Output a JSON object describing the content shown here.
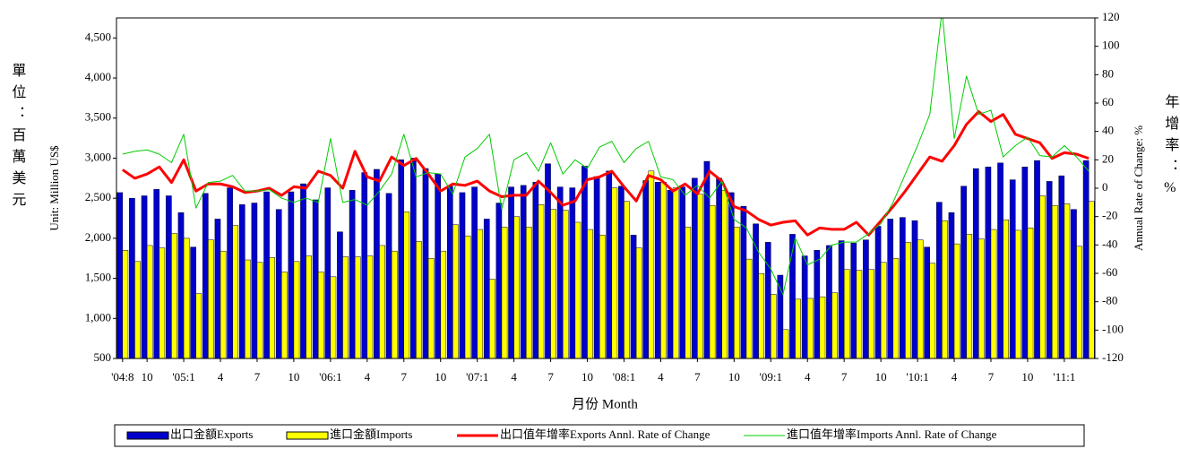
{
  "chart_data": {
    "type": "bar",
    "y_label_cn": "單位：百萬美元",
    "y_label": "Unit: Million US$",
    "y2_label": "Annual Rate of Change: %",
    "y2_label_cn": "年增率：%",
    "x_label": "月份 Month",
    "categories": [
      "'04:8",
      null,
      "10",
      null,
      null,
      "'05:1",
      null,
      null,
      "4",
      null,
      null,
      "7",
      null,
      null,
      "10",
      null,
      null,
      "'06:1",
      null,
      null,
      "4",
      null,
      null,
      "7",
      null,
      null,
      "10",
      null,
      null,
      "'07:1",
      null,
      null,
      "4",
      null,
      null,
      "7",
      null,
      null,
      "10",
      null,
      null,
      "'08:1",
      null,
      null,
      "4",
      null,
      null,
      "7",
      null,
      null,
      "10",
      null,
      null,
      "'09:1",
      null,
      null,
      "4",
      null,
      null,
      "7",
      null,
      null,
      "10",
      null,
      null,
      "'10:1",
      null,
      null,
      "4",
      null,
      null,
      "7",
      null,
      null,
      "10",
      null,
      null,
      "'11:1",
      null,
      null
    ],
    "series": [
      {
        "name": "出口金額Exports",
        "type": "bar",
        "color": "#0000cc",
        "values": [
          2570,
          2500,
          2530,
          2610,
          2530,
          2320,
          1890,
          2560,
          2240,
          2630,
          2420,
          2440,
          2580,
          2360,
          2580,
          2680,
          2480,
          2630,
          2080,
          2600,
          2820,
          2860,
          2560,
          2980,
          3000,
          2870,
          2800,
          2650,
          2570,
          2640,
          2240,
          2440,
          2640,
          2660,
          2700,
          2930,
          2640,
          2630,
          2900,
          2770,
          2840,
          2650,
          2040,
          2720,
          2700,
          2600,
          2640,
          2750,
          2960,
          2750,
          2570,
          2400,
          2180,
          1950,
          1540,
          2050,
          1780,
          1850,
          1910,
          1970,
          1940,
          1980,
          2150,
          2240,
          2260,
          2220,
          1890,
          2450,
          2320,
          2650,
          2870,
          2890,
          2940,
          2730,
          2890,
          2970,
          2710,
          2780,
          2360,
          2970
        ]
      },
      {
        "name": "進口金額Imports",
        "type": "bar",
        "color": "#ffff00",
        "values": [
          1850,
          1710,
          1910,
          1880,
          2060,
          2000,
          1310,
          1980,
          1840,
          2160,
          1730,
          1700,
          1760,
          1580,
          1710,
          1780,
          1580,
          1520,
          1770,
          1770,
          1780,
          1910,
          1840,
          2330,
          1960,
          1750,
          1840,
          2170,
          2030,
          2110,
          1490,
          2140,
          2270,
          2140,
          2420,
          2360,
          2350,
          2200,
          2110,
          2040,
          2630,
          2460,
          1880,
          2840,
          2700,
          2630,
          2140,
          2550,
          2410,
          2600,
          2140,
          1740,
          1560,
          1300,
          860,
          1240,
          1250,
          1270,
          1320,
          1610,
          1600,
          1610,
          1700,
          1750,
          1950,
          1980,
          1690,
          2220,
          1930,
          2050,
          1990,
          2110,
          2230,
          2100,
          2130,
          2530,
          2410,
          2430,
          1900,
          2460
        ]
      },
      {
        "name": "出口值年增率Exports Annl. Rate of Change",
        "type": "line",
        "axis": "y2",
        "color": "#ff0000",
        "values": [
          13,
          7,
          10,
          15,
          4,
          20,
          -2,
          3,
          3,
          1,
          -3,
          -2,
          0,
          -5,
          1,
          0,
          12,
          9,
          0,
          26,
          8,
          5,
          22,
          16,
          21,
          10,
          -2,
          3,
          2,
          5,
          -2,
          -6,
          -5,
          -5,
          5,
          -3,
          -12,
          -9,
          6,
          8,
          12,
          1,
          -9,
          9,
          6,
          -2,
          3,
          -4,
          12,
          5,
          -13,
          -16,
          -22,
          -26,
          -24,
          -23,
          -33,
          -28,
          -29,
          -29,
          -24,
          -33,
          -23,
          -13,
          -2,
          10,
          22,
          19,
          30,
          45,
          54,
          47,
          52,
          38,
          35,
          32,
          21,
          25,
          24,
          21
        ]
      },
      {
        "name": "進口值年增率Imports Annl. Rate of Change",
        "type": "line",
        "axis": "y2",
        "color": "#00cc00",
        "values": [
          24,
          26,
          27,
          24,
          18,
          38,
          -14,
          4,
          5,
          9,
          -2,
          -2,
          -1,
          -7,
          -10,
          -7,
          -10,
          35,
          -10,
          -8,
          -12,
          -2,
          10,
          38,
          8,
          11,
          10,
          -4,
          22,
          28,
          38,
          -15,
          20,
          25,
          12,
          32,
          10,
          20,
          14,
          29,
          33,
          18,
          28,
          33,
          8,
          6,
          -5,
          2,
          -7,
          5,
          -22,
          -28,
          -45,
          -57,
          -75,
          -35,
          -54,
          -50,
          -40,
          -38,
          -38,
          -32,
          -25,
          -10,
          10,
          30,
          52,
          125,
          35,
          79,
          52,
          55,
          22,
          30,
          36,
          23,
          22,
          30,
          22,
          12
        ]
      }
    ],
    "ylim": [
      500,
      4750
    ],
    "yticks": [
      500,
      {
        "value": 1000,
        "label": "1,000"
      },
      {
        "value": 1500,
        "label": "1,500"
      },
      {
        "value": 2000,
        "label": "2,000"
      },
      {
        "value": 2500,
        "label": "2,500"
      },
      {
        "value": 3000,
        "label": "3,000"
      },
      {
        "value": 3500,
        "label": "3,500"
      },
      {
        "value": 4000,
        "label": "4,000"
      },
      {
        "value": 4500,
        "label": "4,500"
      }
    ],
    "y2lim": [
      -120,
      120
    ],
    "y2ticks": [
      -120,
      -100,
      -80,
      -60,
      -40,
      -20,
      0,
      20,
      40,
      60,
      80,
      100,
      120
    ],
    "grid": false,
    "legend": "bottom"
  }
}
